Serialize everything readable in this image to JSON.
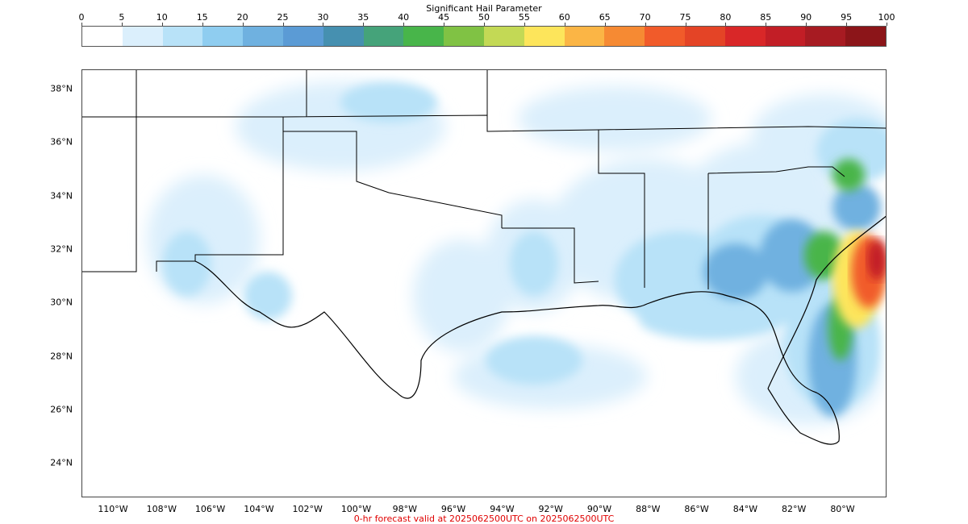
{
  "colorbar": {
    "title": "Significant Hail Parameter",
    "ticks": [
      "0",
      "5",
      "10",
      "15",
      "20",
      "25",
      "30",
      "35",
      "40",
      "45",
      "50",
      "55",
      "60",
      "65",
      "70",
      "75",
      "80",
      "85",
      "90",
      "95",
      "100"
    ],
    "colors": [
      "#ffffff",
      "#dbeffc",
      "#b8e2f8",
      "#8fcdf0",
      "#6fb1e0",
      "#5b9bd5",
      "#4690b0",
      "#45a37a",
      "#48b54a",
      "#80c244",
      "#c3d955",
      "#fde55b",
      "#fbb545",
      "#f68a33",
      "#f15b2a",
      "#e44426",
      "#d92728",
      "#c21e26",
      "#a71b22",
      "#8c1519"
    ]
  },
  "axes": {
    "lat_labels": [
      "38°N",
      "36°N",
      "34°N",
      "32°N",
      "30°N",
      "28°N",
      "26°N",
      "24°N"
    ],
    "lon_labels": [
      "110°W",
      "108°W",
      "106°W",
      "104°W",
      "102°W",
      "100°W",
      "98°W",
      "96°W",
      "94°W",
      "92°W",
      "90°W",
      "88°W",
      "86°W",
      "84°W",
      "82°W",
      "80°W"
    ]
  },
  "footer": "0-hr forecast valid at 2025062500UTC on 2025062500UTC"
}
